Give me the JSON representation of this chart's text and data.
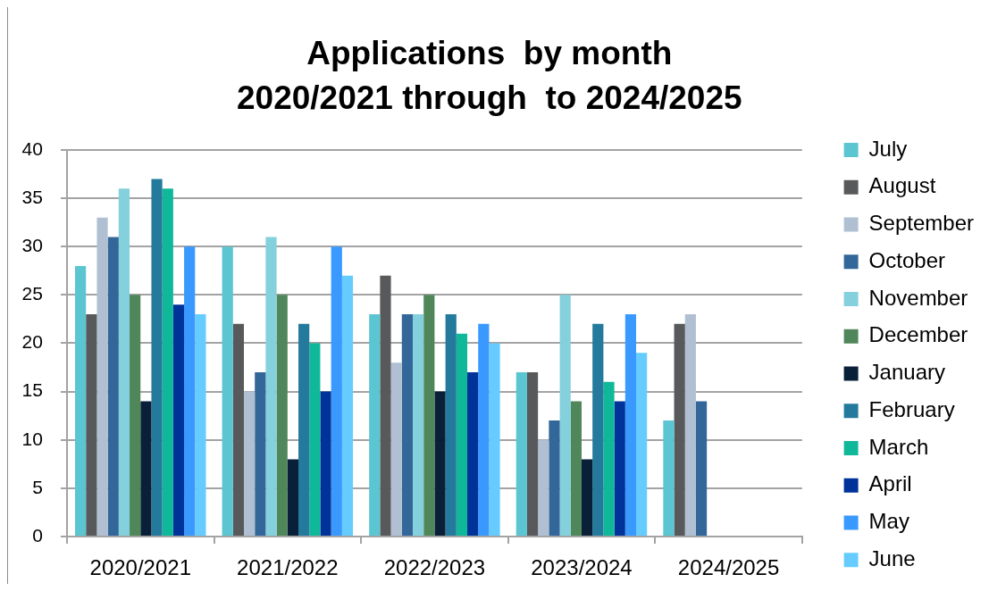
{
  "chart_data": {
    "type": "bar",
    "title": "Applications  by month\n2020/2021 through  to 2024/2025",
    "categories": [
      "2020/2021",
      "2021/2022",
      "2022/2023",
      "2023/2024",
      "2024/2025"
    ],
    "series": [
      {
        "name": "July",
        "color": "#5bc5d1",
        "values": [
          28,
          30,
          23,
          17,
          12
        ]
      },
      {
        "name": "August",
        "color": "#58595b",
        "values": [
          23,
          22,
          27,
          17,
          22
        ]
      },
      {
        "name": "September",
        "color": "#b0c0d2",
        "values": [
          33,
          15,
          18,
          10,
          23
        ]
      },
      {
        "name": "October",
        "color": "#336699",
        "values": [
          31,
          17,
          23,
          12,
          14
        ]
      },
      {
        "name": "November",
        "color": "#84d0dc",
        "values": [
          36,
          31,
          23,
          25,
          null
        ]
      },
      {
        "name": "December",
        "color": "#4f875a",
        "values": [
          25,
          25,
          25,
          14,
          null
        ]
      },
      {
        "name": "January",
        "color": "#0a1f38",
        "values": [
          14,
          8,
          15,
          8,
          null
        ]
      },
      {
        "name": "February",
        "color": "#237a9c",
        "values": [
          37,
          22,
          23,
          22,
          null
        ]
      },
      {
        "name": "March",
        "color": "#10b89a",
        "values": [
          36,
          20,
          21,
          16,
          null
        ]
      },
      {
        "name": "April",
        "color": "#003399",
        "values": [
          24,
          15,
          17,
          14,
          null
        ]
      },
      {
        "name": "May",
        "color": "#3999ff",
        "values": [
          30,
          30,
          22,
          23,
          null
        ]
      },
      {
        "name": "June",
        "color": "#66ccff",
        "values": [
          23,
          27,
          20,
          19,
          null
        ]
      }
    ],
    "ylim": [
      0,
      40
    ],
    "yticks": [
      0,
      5,
      10,
      15,
      20,
      25,
      30,
      35,
      40
    ],
    "grid": "y",
    "legend": "right"
  }
}
